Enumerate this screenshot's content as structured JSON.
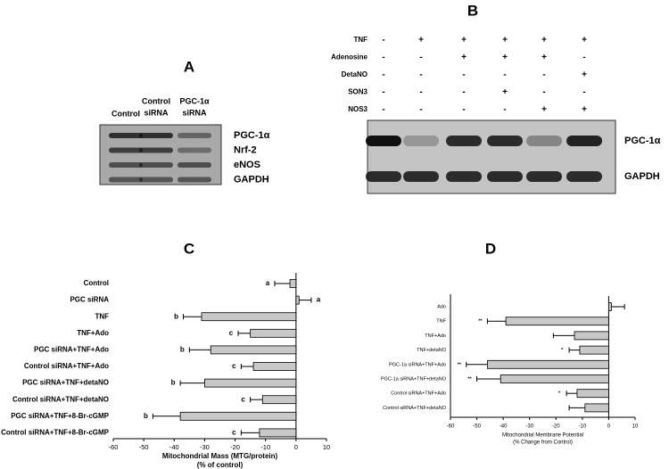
{
  "panels": {
    "A": {
      "label": "A",
      "columns": [
        [
          "Control"
        ],
        [
          "Control",
          "siRNA"
        ],
        [
          "PGC-1α",
          "siRNA"
        ]
      ],
      "rows": [
        "PGC-1α",
        "Nrf-2",
        "eNOS",
        "GAPDH"
      ]
    },
    "B": {
      "label": "B",
      "conditions": [
        {
          "name": "TNF",
          "signs": [
            "-",
            "+",
            "+",
            "+",
            "+",
            "+"
          ]
        },
        {
          "name": "Adenosine",
          "signs": [
            "-",
            "-",
            "+",
            "+",
            "+",
            "-"
          ]
        },
        {
          "name": "DetaNO",
          "signs": [
            "-",
            "-",
            "-",
            "-",
            "-",
            "+"
          ]
        },
        {
          "name": "SON3",
          "signs": [
            "-",
            "-",
            "-",
            "+",
            "-",
            "-"
          ]
        },
        {
          "name": "NOS3",
          "signs": [
            "-",
            "-",
            "-",
            "-",
            "+",
            "+"
          ]
        }
      ],
      "rows": [
        "PGC-1α",
        "GAPDH"
      ]
    }
  },
  "chart_data": [
    {
      "type": "hbar",
      "title": "C",
      "xlabel": [
        "Mitochondrial Mass (MTG/protein)",
        "(% of control)"
      ],
      "categories": [
        "Control",
        "PGC siRNA",
        "TNF",
        "TNF+Ado",
        "PGC siRNA+TNF+Ado",
        "Control siRNA+TNF+Ado",
        "PGC siRNA+TNF+detaNO",
        "Control siRNA+TNF+detaNO",
        "PGC siRNA+TNF+8-Br-cGMP",
        "Control siRNA+TNF+8-Br-cGMP"
      ],
      "values": [
        -2,
        1,
        -31,
        -15,
        -28,
        -14,
        -30,
        -11,
        -38,
        -12
      ],
      "errors": [
        5,
        4,
        6,
        4,
        7,
        4,
        8,
        4,
        9,
        6
      ],
      "annotations": [
        "a",
        "a",
        "b",
        "c",
        "b",
        "c",
        "b",
        "c",
        "b",
        "c"
      ],
      "color": "#c8c8c8",
      "xlim": [
        -60,
        10
      ],
      "xticks": [
        -60,
        -50,
        -40,
        -30,
        -20,
        -10,
        0,
        10
      ]
    },
    {
      "type": "hbar",
      "title": "D",
      "xlabel": [
        "Mitochondrial Membrane Potential",
        "(% Change from Control)"
      ],
      "categories": [
        "Ado",
        "TNF",
        "TNF+Ado",
        "TNF+detaNO",
        "PGC-1a siRNA+TNF+Ado",
        "PGC-1a siRNA+TNF+detaNO",
        "Control siRNA+TNF+Ado",
        "Control siRNA+TNF+detaNO"
      ],
      "values": [
        1,
        -39,
        -13,
        -11,
        -46,
        -41,
        -12,
        -9
      ],
      "errors": [
        5,
        7,
        8,
        4,
        8,
        9,
        4,
        6
      ],
      "annotations": [
        null,
        "**",
        null,
        "*",
        "**",
        "**",
        "*",
        null
      ],
      "color": "#c8c8c8",
      "xlim": [
        -60,
        10
      ],
      "xticks": [
        -60,
        -50,
        -40,
        -30,
        -20,
        -10,
        0,
        10
      ]
    }
  ]
}
